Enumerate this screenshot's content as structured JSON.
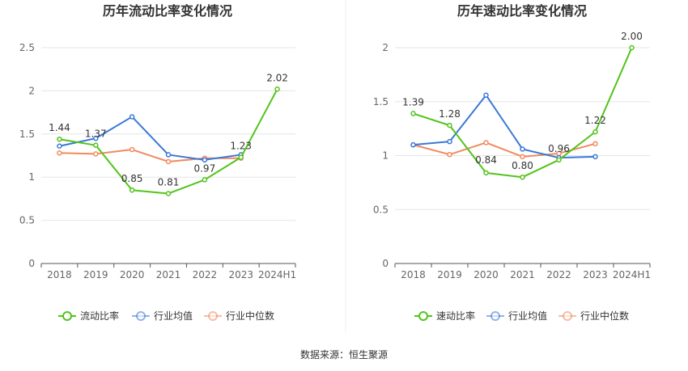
{
  "source": "数据来源：恒生聚源",
  "chart_data": [
    {
      "type": "line",
      "title": "历年流动比率变化情况",
      "categories": [
        "2018",
        "2019",
        "2020",
        "2021",
        "2022",
        "2023",
        "2024H1"
      ],
      "ylim": [
        0,
        2.5
      ],
      "yticks": [
        "0",
        "0.5",
        "1",
        "1.5",
        "2",
        "2.5"
      ],
      "grid": true,
      "legend": "bottom",
      "series": [
        {
          "name": "流动比率",
          "color": "#52c41a",
          "values": [
            1.44,
            1.37,
            0.85,
            0.81,
            0.97,
            1.23,
            2.02
          ],
          "labels": [
            "1.44",
            "1.37",
            "0.85",
            "0.81",
            "0.97",
            "1.23",
            "2.02"
          ]
        },
        {
          "name": "行业均值",
          "color": "#3a78d8",
          "values": [
            1.36,
            1.45,
            1.7,
            1.26,
            1.2,
            1.26,
            null
          ]
        },
        {
          "name": "行业中位数",
          "color": "#f08a5d",
          "values": [
            1.28,
            1.27,
            1.32,
            1.18,
            1.22,
            1.22,
            null
          ]
        }
      ]
    },
    {
      "type": "line",
      "title": "历年速动比率变化情况",
      "categories": [
        "2018",
        "2019",
        "2020",
        "2021",
        "2022",
        "2023",
        "2024H1"
      ],
      "ylim": [
        0,
        2
      ],
      "yticks": [
        "0",
        "0.5",
        "1",
        "1.5",
        "2"
      ],
      "grid": true,
      "legend": "bottom",
      "series": [
        {
          "name": "速动比率",
          "color": "#52c41a",
          "values": [
            1.39,
            1.28,
            0.84,
            0.8,
            0.96,
            1.22,
            2.0
          ],
          "labels": [
            "1.39",
            "1.28",
            "0.84",
            "0.80",
            "0.96",
            "1.22",
            "2.00"
          ]
        },
        {
          "name": "行业均值",
          "color": "#3a78d8",
          "values": [
            1.1,
            1.13,
            1.56,
            1.06,
            0.98,
            0.99,
            null
          ]
        },
        {
          "name": "行业中位数",
          "color": "#f08a5d",
          "values": [
            1.1,
            1.01,
            1.12,
            0.99,
            1.02,
            1.11,
            null
          ]
        }
      ]
    }
  ]
}
